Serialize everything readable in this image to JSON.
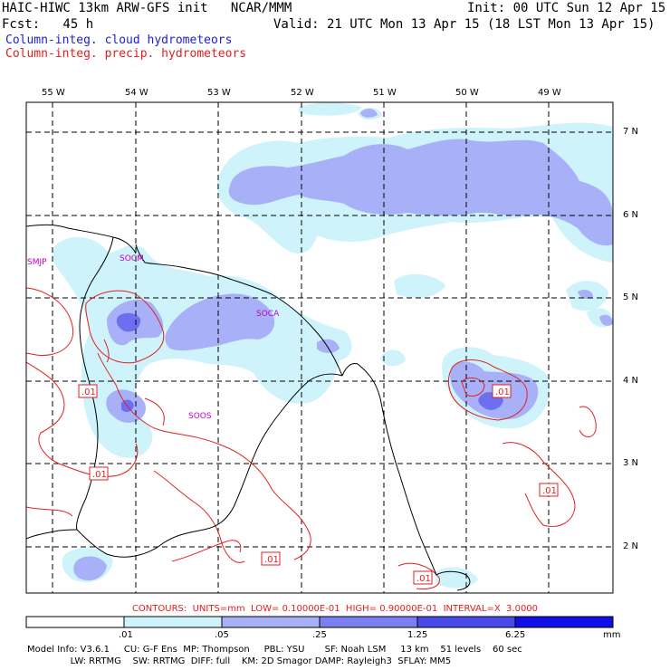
{
  "header": {
    "title_left": "HAIC-HIWC 13km ARW-GFS init   NCAR/MMM",
    "fcst": "Fcst:   45 h",
    "init": "Init: 00 UTC Sun 12 Apr 15",
    "valid": "Valid: 21 UTC Mon 13 Apr 15 (18 LST Mon 13 Apr 15)",
    "field_cloud": "Column-integ. cloud hydrometeors",
    "field_precip": "Column-integ. precip. hydrometeors"
  },
  "map": {
    "longitude_labels": [
      "55 W",
      "54 W",
      "53 W",
      "52 W",
      "51 W",
      "50 W",
      "49 W"
    ],
    "latitude_labels": [
      "7 N",
      "6 N",
      "5 N",
      "4 N",
      "3 N",
      "2 N"
    ],
    "station_labels": [
      "SMJP",
      "SOCM",
      "SOCA",
      "SOOS"
    ],
    "contour_labels": [
      ".01",
      ".01",
      ".01",
      ".01",
      ".01",
      ".01"
    ],
    "colors": {
      "shade_1": "#cff3fb",
      "shade_2": "#a8b0f7",
      "shade_3": "#6d6ff0",
      "contour": "#e02020",
      "coast": "#000000",
      "station": "#c000c0"
    }
  },
  "legend": {
    "contours_text": "CONTOURS:  UNITS=mm  LOW= 0.10000E-01  HIGH= 0.90000E-01  INTERVAL=X  3.0000",
    "colorbar_ticks": [
      ".01",
      ".05",
      ".25",
      "1.25",
      "6.25",
      "mm"
    ],
    "colorbar_colors": [
      "#ffffff",
      "#cff3fb",
      "#a8b0f7",
      "#7b7ff2",
      "#4a4ae8",
      "#1010e6"
    ]
  },
  "footer": {
    "line1": "Model Info: V3.6.1     CU: G-F Ens  MP: Thompson     PBL: YSU       SF: Noah LSM     13 km    51 levels    60 sec",
    "line2": "               LW: RRTMG    SW: RRTMG  DIFF: full    KM: 2D Smagor DAMP: Rayleigh3  SFLAY: MM5"
  }
}
